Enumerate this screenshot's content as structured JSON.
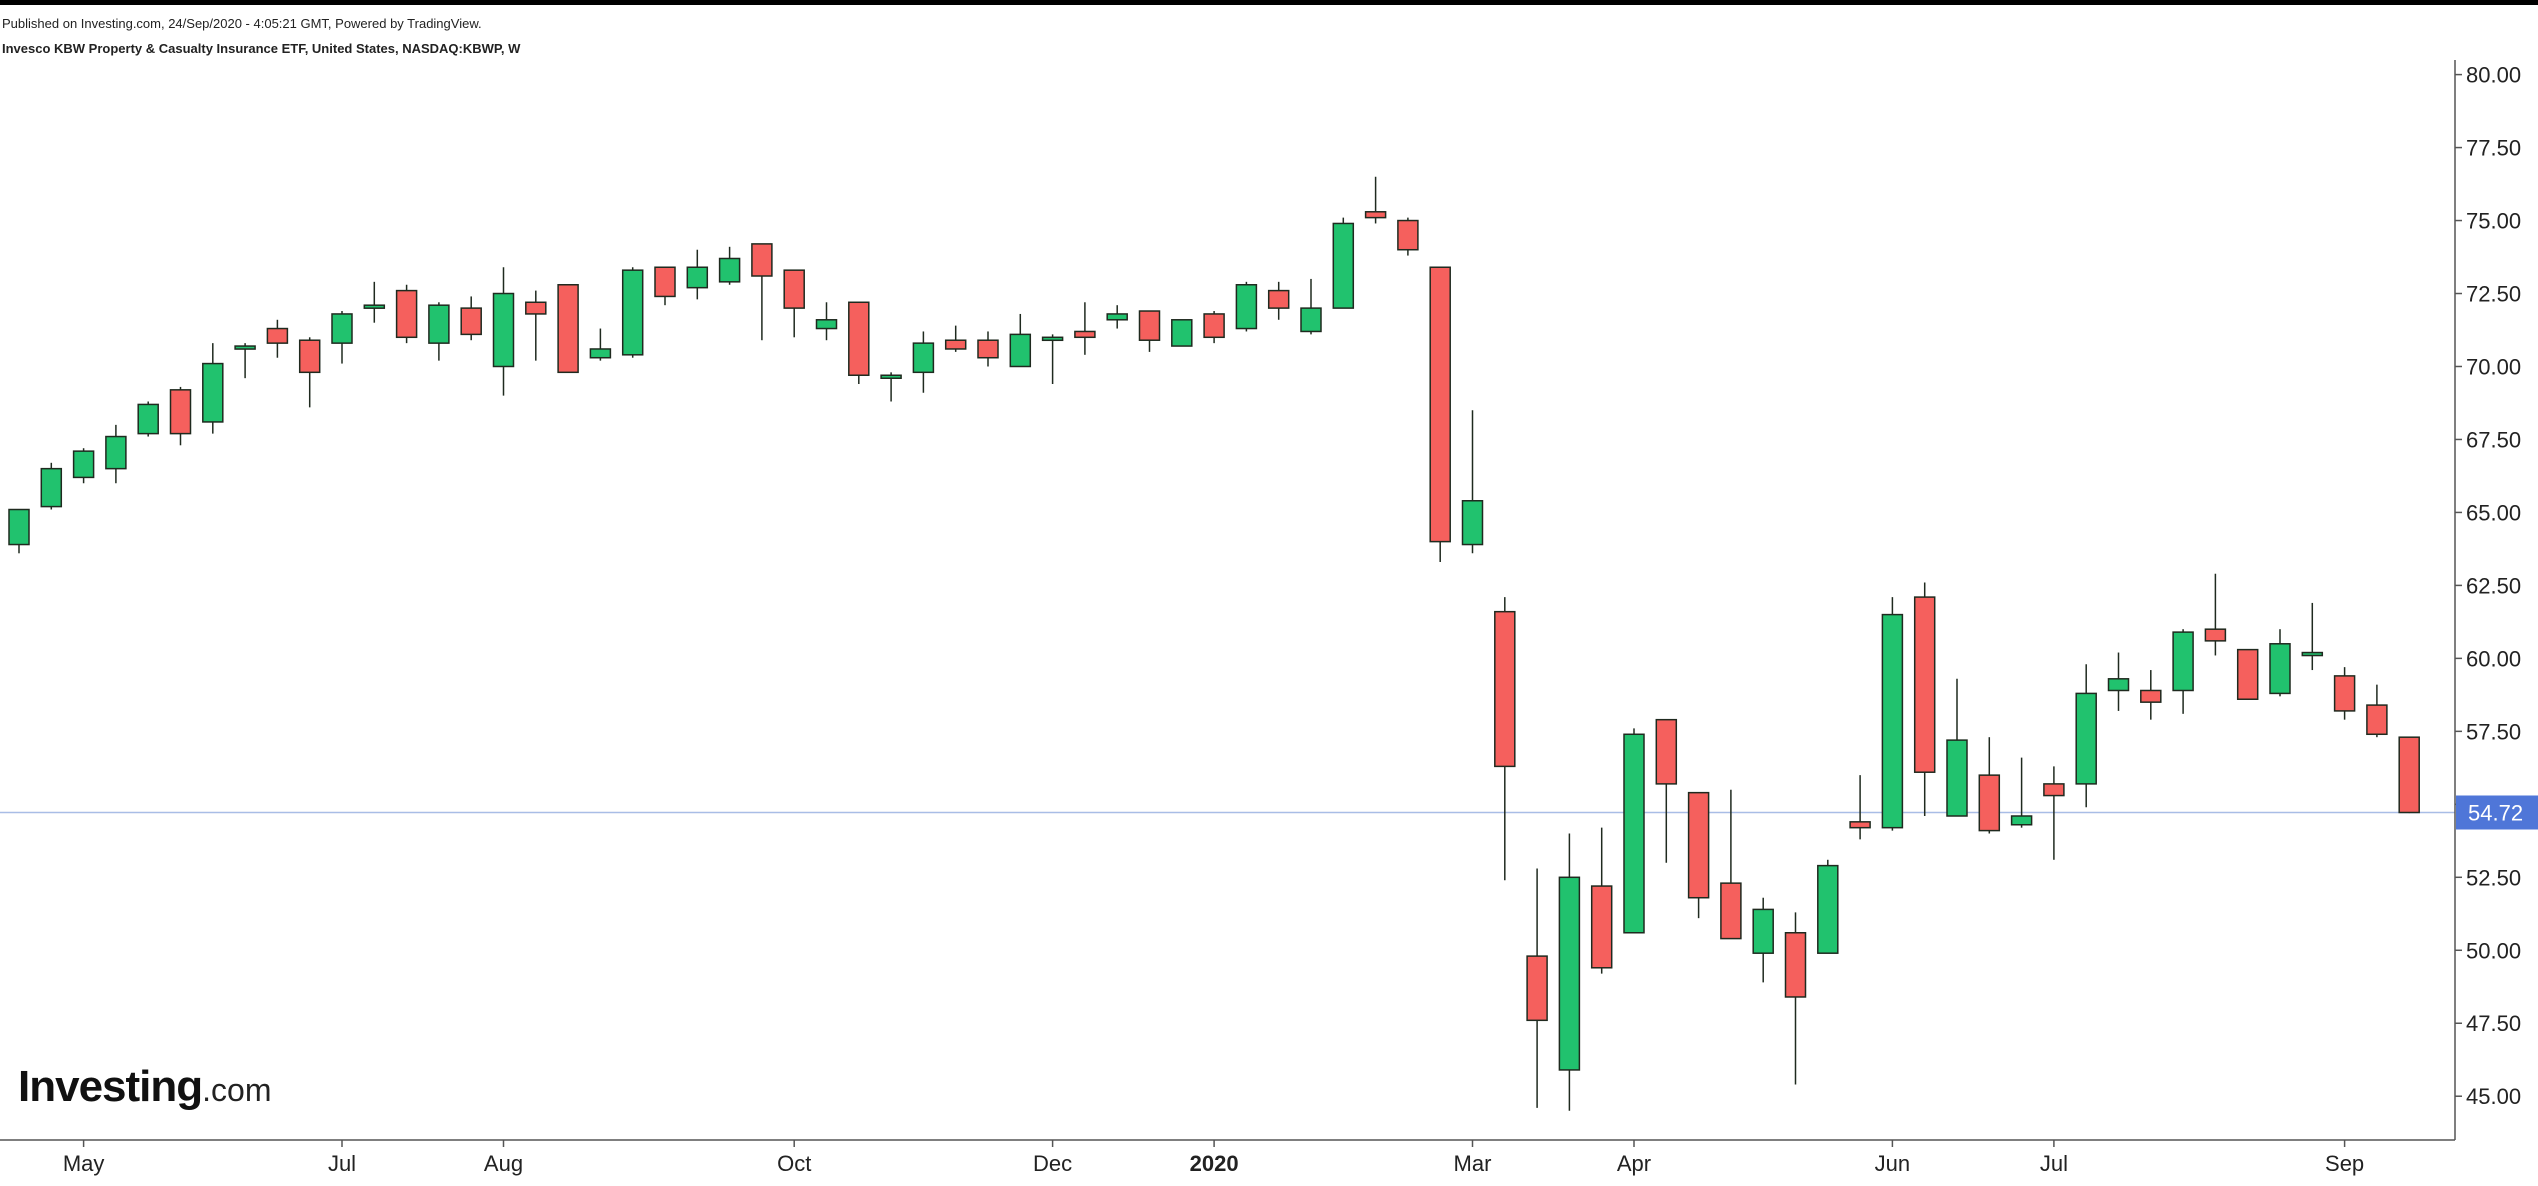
{
  "header": {
    "published": "Published on Investing.com, 24/Sep/2020 - 4:05:21 GMT, Powered by TradingView.",
    "symbol_title": "Invesco KBW Property & Casualty Insurance ETF, United States, NASDAQ:KBWP, W"
  },
  "logo": {
    "brand": "Investing",
    "domain": ".com"
  },
  "colors": {
    "up": "#21c26e",
    "down": "#f5605d",
    "outline": "#1f2a1f",
    "price_line": "#a9bde6",
    "price_badge": "#4f76d8",
    "axis": "#555555"
  },
  "chart_data": {
    "type": "candlestick",
    "title": "Invesco KBW Property & Casualty Insurance ETF, United States, NASDAQ:KBWP, W",
    "interval": "W",
    "y_axis": {
      "position": "right",
      "min": 43.5,
      "max": 80.5,
      "ticks": [
        "80.00",
        "77.50",
        "75.00",
        "72.50",
        "70.00",
        "67.50",
        "65.00",
        "62.50",
        "60.00",
        "57.50",
        "55.00",
        "52.50",
        "50.00",
        "47.50",
        "45.00"
      ]
    },
    "x_ticks": [
      {
        "label": "May",
        "index": 2
      },
      {
        "label": "Jul",
        "index": 10
      },
      {
        "label": "Aug",
        "index": 15
      },
      {
        "label": "Oct",
        "index": 24
      },
      {
        "label": "Dec",
        "index": 32
      },
      {
        "label": "2020",
        "index": 37,
        "bold": true
      },
      {
        "label": "Mar",
        "index": 45
      },
      {
        "label": "Apr",
        "index": 50
      },
      {
        "label": "Jun",
        "index": 58
      },
      {
        "label": "Jul",
        "index": 63
      },
      {
        "label": "Sep",
        "index": 72
      }
    ],
    "last_price": "54.72",
    "candles": [
      {
        "o": 63.9,
        "h": 65.1,
        "l": 63.6,
        "c": 65.1
      },
      {
        "o": 65.2,
        "h": 66.7,
        "l": 65.1,
        "c": 66.5
      },
      {
        "o": 66.2,
        "h": 67.2,
        "l": 66.0,
        "c": 67.1
      },
      {
        "o": 66.5,
        "h": 68.0,
        "l": 66.0,
        "c": 67.6
      },
      {
        "o": 67.7,
        "h": 68.8,
        "l": 67.6,
        "c": 68.7
      },
      {
        "o": 69.2,
        "h": 69.3,
        "l": 67.3,
        "c": 67.7
      },
      {
        "o": 68.1,
        "h": 70.8,
        "l": 67.7,
        "c": 70.1
      },
      {
        "o": 70.6,
        "h": 70.8,
        "l": 69.6,
        "c": 70.7
      },
      {
        "o": 71.3,
        "h": 71.6,
        "l": 70.3,
        "c": 70.8
      },
      {
        "o": 70.9,
        "h": 71.0,
        "l": 68.6,
        "c": 69.8
      },
      {
        "o": 70.8,
        "h": 71.9,
        "l": 70.1,
        "c": 71.8
      },
      {
        "o": 72.0,
        "h": 72.9,
        "l": 71.5,
        "c": 72.1
      },
      {
        "o": 72.6,
        "h": 72.8,
        "l": 70.8,
        "c": 71.0
      },
      {
        "o": 70.8,
        "h": 72.2,
        "l": 70.2,
        "c": 72.1
      },
      {
        "o": 72.0,
        "h": 72.4,
        "l": 70.9,
        "c": 71.1
      },
      {
        "o": 70.0,
        "h": 73.4,
        "l": 69.0,
        "c": 72.5
      },
      {
        "o": 72.2,
        "h": 72.6,
        "l": 70.2,
        "c": 71.8
      },
      {
        "o": 72.8,
        "h": 72.8,
        "l": 69.8,
        "c": 69.8
      },
      {
        "o": 70.3,
        "h": 71.3,
        "l": 70.2,
        "c": 70.6
      },
      {
        "o": 70.4,
        "h": 73.4,
        "l": 70.3,
        "c": 73.3
      },
      {
        "o": 73.4,
        "h": 73.4,
        "l": 72.1,
        "c": 72.4
      },
      {
        "o": 72.7,
        "h": 74.0,
        "l": 72.3,
        "c": 73.4
      },
      {
        "o": 72.9,
        "h": 74.1,
        "l": 72.8,
        "c": 73.7
      },
      {
        "o": 74.2,
        "h": 74.2,
        "l": 70.9,
        "c": 73.1
      },
      {
        "o": 73.3,
        "h": 73.3,
        "l": 71.0,
        "c": 72.0
      },
      {
        "o": 71.3,
        "h": 72.2,
        "l": 70.9,
        "c": 71.6
      },
      {
        "o": 72.2,
        "h": 72.2,
        "l": 69.4,
        "c": 69.7
      },
      {
        "o": 69.6,
        "h": 69.8,
        "l": 68.8,
        "c": 69.7
      },
      {
        "o": 69.8,
        "h": 71.2,
        "l": 69.1,
        "c": 70.8
      },
      {
        "o": 70.9,
        "h": 71.4,
        "l": 70.5,
        "c": 70.6
      },
      {
        "o": 70.9,
        "h": 71.2,
        "l": 70.0,
        "c": 70.3
      },
      {
        "o": 70.0,
        "h": 71.8,
        "l": 70.0,
        "c": 71.1
      },
      {
        "o": 70.9,
        "h": 71.1,
        "l": 69.4,
        "c": 71.0
      },
      {
        "o": 71.2,
        "h": 72.2,
        "l": 70.4,
        "c": 71.0
      },
      {
        "o": 71.6,
        "h": 72.1,
        "l": 71.3,
        "c": 71.8
      },
      {
        "o": 71.9,
        "h": 71.9,
        "l": 70.5,
        "c": 70.9
      },
      {
        "o": 70.7,
        "h": 71.6,
        "l": 70.7,
        "c": 71.6
      },
      {
        "o": 71.8,
        "h": 71.9,
        "l": 70.8,
        "c": 71.0
      },
      {
        "o": 71.3,
        "h": 72.9,
        "l": 71.2,
        "c": 72.8
      },
      {
        "o": 72.6,
        "h": 72.9,
        "l": 71.6,
        "c": 72.0
      },
      {
        "o": 71.2,
        "h": 73.0,
        "l": 71.1,
        "c": 72.0
      },
      {
        "o": 72.0,
        "h": 75.1,
        "l": 72.0,
        "c": 74.9
      },
      {
        "o": 75.3,
        "h": 76.5,
        "l": 74.9,
        "c": 75.1
      },
      {
        "o": 75.0,
        "h": 75.1,
        "l": 73.8,
        "c": 74.0
      },
      {
        "o": 73.4,
        "h": 73.4,
        "l": 63.3,
        "c": 64.0
      },
      {
        "o": 63.9,
        "h": 68.5,
        "l": 63.6,
        "c": 65.4
      },
      {
        "o": 61.6,
        "h": 62.1,
        "l": 52.4,
        "c": 56.3
      },
      {
        "o": 49.8,
        "h": 52.8,
        "l": 44.6,
        "c": 47.6
      },
      {
        "o": 45.9,
        "h": 54.0,
        "l": 44.5,
        "c": 52.5
      },
      {
        "o": 52.2,
        "h": 54.2,
        "l": 49.2,
        "c": 49.4
      },
      {
        "o": 50.6,
        "h": 57.6,
        "l": 50.6,
        "c": 57.4
      },
      {
        "o": 57.9,
        "h": 57.9,
        "l": 53.0,
        "c": 55.7
      },
      {
        "o": 55.4,
        "h": 55.4,
        "l": 51.1,
        "c": 51.8
      },
      {
        "o": 52.3,
        "h": 55.5,
        "l": 50.4,
        "c": 50.4
      },
      {
        "o": 49.9,
        "h": 51.8,
        "l": 48.9,
        "c": 51.4
      },
      {
        "o": 50.6,
        "h": 51.3,
        "l": 45.4,
        "c": 48.4
      },
      {
        "o": 49.9,
        "h": 53.1,
        "l": 49.9,
        "c": 52.9
      },
      {
        "o": 54.4,
        "h": 56.0,
        "l": 53.8,
        "c": 54.2
      },
      {
        "o": 54.2,
        "h": 62.1,
        "l": 54.1,
        "c": 61.5
      },
      {
        "o": 62.1,
        "h": 62.6,
        "l": 54.6,
        "c": 56.1
      },
      {
        "o": 54.6,
        "h": 59.3,
        "l": 54.6,
        "c": 57.2
      },
      {
        "o": 56.0,
        "h": 57.3,
        "l": 54.0,
        "c": 54.1
      },
      {
        "o": 54.3,
        "h": 56.6,
        "l": 54.2,
        "c": 54.6
      },
      {
        "o": 55.7,
        "h": 56.3,
        "l": 53.1,
        "c": 55.3
      },
      {
        "o": 55.7,
        "h": 59.8,
        "l": 54.9,
        "c": 58.8
      },
      {
        "o": 58.9,
        "h": 60.2,
        "l": 58.2,
        "c": 59.3
      },
      {
        "o": 58.9,
        "h": 59.6,
        "l": 57.9,
        "c": 58.5
      },
      {
        "o": 58.9,
        "h": 61.0,
        "l": 58.1,
        "c": 60.9
      },
      {
        "o": 61.0,
        "h": 62.9,
        "l": 60.1,
        "c": 60.6
      },
      {
        "o": 60.3,
        "h": 60.3,
        "l": 58.6,
        "c": 58.6
      },
      {
        "o": 58.8,
        "h": 61.0,
        "l": 58.7,
        "c": 60.5
      },
      {
        "o": 60.1,
        "h": 61.9,
        "l": 59.6,
        "c": 60.2
      },
      {
        "o": 59.4,
        "h": 59.7,
        "l": 57.9,
        "c": 58.2
      },
      {
        "o": 58.4,
        "h": 59.1,
        "l": 57.3,
        "c": 57.4
      },
      {
        "o": 57.3,
        "h": 57.3,
        "l": 54.7,
        "c": 54.72
      }
    ]
  }
}
